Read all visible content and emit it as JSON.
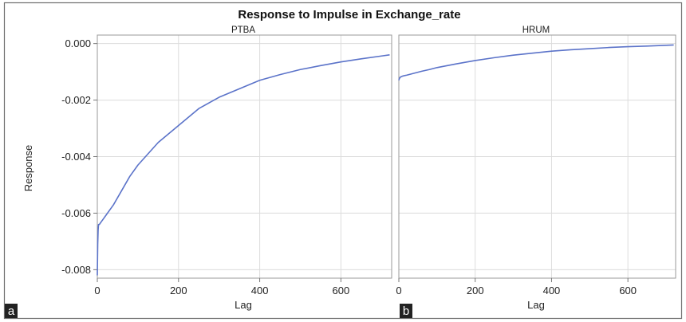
{
  "figure": {
    "title": "Response to Impulse in Exchange_rate",
    "ylabel": "Response",
    "line_color": "#5b73c9",
    "grid_color": "#dcdcdc",
    "frame_color": "#9a9a9a"
  },
  "chart_data": [
    {
      "type": "line",
      "panel_label": "a",
      "title": "PTBA",
      "xlabel": "Lag",
      "ylabel": "Response",
      "xlim": [
        0,
        725
      ],
      "ylim": [
        -0.0083,
        0.0003
      ],
      "x_ticks": [
        0,
        200,
        400,
        600
      ],
      "x_tick_labels": [
        "0",
        "200",
        "400",
        "600"
      ],
      "y_ticks": [
        0.0,
        -0.002,
        -0.004,
        -0.006,
        -0.008
      ],
      "y_tick_labels": [
        "0.000",
        "-0.002",
        "-0.004",
        "-0.006",
        "-0.008"
      ],
      "grid": true,
      "series": [
        {
          "x": [
            0,
            1,
            2,
            3,
            5,
            10,
            20,
            40,
            60,
            80,
            100,
            150,
            200,
            250,
            300,
            350,
            400,
            450,
            500,
            550,
            600,
            650,
            700,
            720
          ],
          "y": [
            -0.0082,
            -0.0071,
            -0.0066,
            -0.0064,
            -0.0064,
            -0.0063,
            -0.0061,
            -0.0057,
            -0.0052,
            -0.0047,
            -0.0043,
            -0.0035,
            -0.0029,
            -0.0023,
            -0.0019,
            -0.0016,
            -0.0013,
            -0.0011,
            -0.00092,
            -0.00078,
            -0.00065,
            -0.00054,
            -0.00044,
            -0.0004
          ]
        }
      ]
    },
    {
      "type": "line",
      "panel_label": "b",
      "title": "HRUM",
      "xlabel": "Lag",
      "xlim": [
        0,
        725
      ],
      "ylim": [
        -0.0083,
        0.0003
      ],
      "x_ticks": [
        0,
        200,
        400,
        600
      ],
      "x_tick_labels": [
        "0",
        "200",
        "400",
        "600"
      ],
      "grid": true,
      "series": [
        {
          "x": [
            0,
            1,
            3,
            5,
            10,
            20,
            40,
            60,
            80,
            100,
            150,
            200,
            250,
            300,
            350,
            400,
            450,
            500,
            550,
            600,
            650,
            700,
            720
          ],
          "y": [
            -0.0013,
            -0.00125,
            -0.0012,
            -0.00118,
            -0.00115,
            -0.00112,
            -0.00105,
            -0.00098,
            -0.00092,
            -0.00085,
            -0.00072,
            -0.0006,
            -0.0005,
            -0.00041,
            -0.00034,
            -0.00027,
            -0.00022,
            -0.00018,
            -0.00014,
            -0.00011,
            -9e-05,
            -6e-05,
            -5e-05
          ]
        }
      ]
    }
  ]
}
